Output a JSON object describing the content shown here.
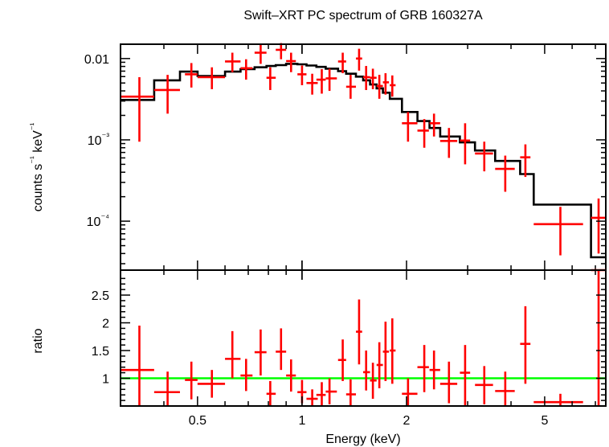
{
  "title": "Swift–XRT PC spectrum of GRB 160327A",
  "colors": {
    "data": "#ff0000",
    "model": "#000000",
    "unity": "#00ff00",
    "frame": "#000000"
  },
  "chart_data": [
    {
      "type": "scatter",
      "panel": "spectrum",
      "ylabel": "counts s⁻¹ keV⁻¹",
      "xscale": "log",
      "yscale": "log",
      "xlim": [
        0.3,
        7.5
      ],
      "ylim": [
        2.5e-05,
        0.015
      ],
      "yticks": [
        {
          "value": 0.01,
          "label": "0.01"
        },
        {
          "value": 0.001,
          "label": "10⁻³"
        },
        {
          "value": 0.0001,
          "label": "10⁻⁴"
        }
      ],
      "data_points": [
        {
          "x": 0.34,
          "x_lo": 0.3,
          "x_hi": 0.375,
          "y": 0.0034,
          "y_lo": 0.00095,
          "y_hi": 0.0059
        },
        {
          "x": 0.41,
          "x_lo": 0.375,
          "x_hi": 0.445,
          "y": 0.0041,
          "y_lo": 0.0021,
          "y_hi": 0.0063
        },
        {
          "x": 0.48,
          "x_lo": 0.46,
          "x_hi": 0.5,
          "y": 0.0064,
          "y_lo": 0.0044,
          "y_hi": 0.0088
        },
        {
          "x": 0.55,
          "x_lo": 0.5,
          "x_hi": 0.6,
          "y": 0.0059,
          "y_lo": 0.0042,
          "y_hi": 0.0078
        },
        {
          "x": 0.63,
          "x_lo": 0.6,
          "x_hi": 0.665,
          "y": 0.0092,
          "y_lo": 0.0068,
          "y_hi": 0.0118
        },
        {
          "x": 0.69,
          "x_lo": 0.665,
          "x_hi": 0.72,
          "y": 0.0076,
          "y_lo": 0.0055,
          "y_hi": 0.0098
        },
        {
          "x": 0.76,
          "x_lo": 0.73,
          "x_hi": 0.79,
          "y": 0.0118,
          "y_lo": 0.0086,
          "y_hi": 0.0148
        },
        {
          "x": 0.81,
          "x_lo": 0.79,
          "x_hi": 0.84,
          "y": 0.0058,
          "y_lo": 0.0041,
          "y_hi": 0.0078
        },
        {
          "x": 0.87,
          "x_lo": 0.84,
          "x_hi": 0.9,
          "y": 0.0128,
          "y_lo": 0.0098,
          "y_hi": 0.0155
        },
        {
          "x": 0.93,
          "x_lo": 0.9,
          "x_hi": 0.96,
          "y": 0.0093,
          "y_lo": 0.0068,
          "y_hi": 0.0118
        },
        {
          "x": 1.0,
          "x_lo": 0.97,
          "x_hi": 1.03,
          "y": 0.0064,
          "y_lo": 0.0047,
          "y_hi": 0.0082
        },
        {
          "x": 1.07,
          "x_lo": 1.03,
          "x_hi": 1.11,
          "y": 0.005,
          "y_lo": 0.0036,
          "y_hi": 0.0065
        },
        {
          "x": 1.14,
          "x_lo": 1.1,
          "x_hi": 1.17,
          "y": 0.0055,
          "y_lo": 0.0037,
          "y_hi": 0.0074
        },
        {
          "x": 1.2,
          "x_lo": 1.17,
          "x_hi": 1.26,
          "y": 0.0057,
          "y_lo": 0.004,
          "y_hi": 0.0075
        },
        {
          "x": 1.31,
          "x_lo": 1.27,
          "x_hi": 1.34,
          "y": 0.0092,
          "y_lo": 0.0066,
          "y_hi": 0.0118
        },
        {
          "x": 1.38,
          "x_lo": 1.34,
          "x_hi": 1.43,
          "y": 0.0045,
          "y_lo": 0.0032,
          "y_hi": 0.0063
        },
        {
          "x": 1.46,
          "x_lo": 1.43,
          "x_hi": 1.49,
          "y": 0.01,
          "y_lo": 0.0071,
          "y_hi": 0.0132
        },
        {
          "x": 1.53,
          "x_lo": 1.5,
          "x_hi": 1.57,
          "y": 0.0059,
          "y_lo": 0.0041,
          "y_hi": 0.0081
        },
        {
          "x": 1.6,
          "x_lo": 1.57,
          "x_hi": 1.64,
          "y": 0.0058,
          "y_lo": 0.0042,
          "y_hi": 0.0075
        },
        {
          "x": 1.67,
          "x_lo": 1.64,
          "x_hi": 1.71,
          "y": 0.0046,
          "y_lo": 0.0032,
          "y_hi": 0.0063
        },
        {
          "x": 1.74,
          "x_lo": 1.71,
          "x_hi": 1.78,
          "y": 0.0051,
          "y_lo": 0.0036,
          "y_hi": 0.0066
        },
        {
          "x": 1.82,
          "x_lo": 1.79,
          "x_hi": 1.86,
          "y": 0.0047,
          "y_lo": 0.0034,
          "y_hi": 0.0062
        },
        {
          "x": 2.02,
          "x_lo": 1.94,
          "x_hi": 2.15,
          "y": 0.0016,
          "y_lo": 0.00095,
          "y_hi": 0.0022
        },
        {
          "x": 2.25,
          "x_lo": 2.15,
          "x_hi": 2.32,
          "y": 0.0013,
          "y_lo": 0.0008,
          "y_hi": 0.0018
        },
        {
          "x": 2.4,
          "x_lo": 2.33,
          "x_hi": 2.5,
          "y": 0.0016,
          "y_lo": 0.0011,
          "y_hi": 0.0021
        },
        {
          "x": 2.65,
          "x_lo": 2.5,
          "x_hi": 2.8,
          "y": 0.00097,
          "y_lo": 0.0006,
          "y_hi": 0.0014
        },
        {
          "x": 2.95,
          "x_lo": 2.85,
          "x_hi": 3.05,
          "y": 0.00098,
          "y_lo": 0.0005,
          "y_hi": 0.0016
        },
        {
          "x": 3.35,
          "x_lo": 3.15,
          "x_hi": 3.55,
          "y": 0.00068,
          "y_lo": 0.00041,
          "y_hi": 0.00095
        },
        {
          "x": 3.85,
          "x_lo": 3.6,
          "x_hi": 4.1,
          "y": 0.00044,
          "y_lo": 0.00023,
          "y_hi": 0.00064
        },
        {
          "x": 4.4,
          "x_lo": 4.25,
          "x_hi": 4.55,
          "y": 0.00061,
          "y_lo": 0.00035,
          "y_hi": 0.00088
        },
        {
          "x": 5.55,
          "x_lo": 4.65,
          "x_hi": 6.45,
          "y": 9.2e-05,
          "y_lo": 3.8e-05,
          "y_hi": 0.00015
        },
        {
          "x": 7.15,
          "x_lo": 6.8,
          "x_hi": 7.5,
          "y": 0.00011,
          "y_lo": 4e-05,
          "y_hi": 0.00019
        }
      ],
      "model_steps": [
        {
          "x0": 0.3,
          "x1": 0.375,
          "y": 0.0031
        },
        {
          "x0": 0.375,
          "x1": 0.445,
          "y": 0.0054
        },
        {
          "x0": 0.445,
          "x1": 0.5,
          "y": 0.0069
        },
        {
          "x0": 0.5,
          "x1": 0.6,
          "y": 0.0061
        },
        {
          "x0": 0.6,
          "x1": 0.665,
          "y": 0.0069
        },
        {
          "x0": 0.665,
          "x1": 0.73,
          "y": 0.0074
        },
        {
          "x0": 0.73,
          "x1": 0.79,
          "y": 0.0078
        },
        {
          "x0": 0.79,
          "x1": 0.84,
          "y": 0.0081
        },
        {
          "x0": 0.84,
          "x1": 0.9,
          "y": 0.0083
        },
        {
          "x0": 0.9,
          "x1": 0.97,
          "y": 0.0086
        },
        {
          "x0": 0.97,
          "x1": 1.03,
          "y": 0.0085
        },
        {
          "x0": 1.03,
          "x1": 1.1,
          "y": 0.0082
        },
        {
          "x0": 1.1,
          "x1": 1.17,
          "y": 0.0079
        },
        {
          "x0": 1.17,
          "x1": 1.27,
          "y": 0.0075
        },
        {
          "x0": 1.27,
          "x1": 1.34,
          "y": 0.007
        },
        {
          "x0": 1.34,
          "x1": 1.43,
          "y": 0.0065
        },
        {
          "x0": 1.43,
          "x1": 1.5,
          "y": 0.006
        },
        {
          "x0": 1.5,
          "x1": 1.57,
          "y": 0.0054
        },
        {
          "x0": 1.57,
          "x1": 1.64,
          "y": 0.0048
        },
        {
          "x0": 1.64,
          "x1": 1.71,
          "y": 0.0043
        },
        {
          "x0": 1.71,
          "x1": 1.79,
          "y": 0.0038
        },
        {
          "x0": 1.79,
          "x1": 1.94,
          "y": 0.0032
        },
        {
          "x0": 1.94,
          "x1": 2.15,
          "y": 0.0022
        },
        {
          "x0": 2.15,
          "x1": 2.33,
          "y": 0.0017
        },
        {
          "x0": 2.33,
          "x1": 2.5,
          "y": 0.0014
        },
        {
          "x0": 2.5,
          "x1": 2.85,
          "y": 0.0011
        },
        {
          "x0": 2.85,
          "x1": 3.15,
          "y": 0.00093
        },
        {
          "x0": 3.15,
          "x1": 3.6,
          "y": 0.00074
        },
        {
          "x0": 3.6,
          "x1": 4.25,
          "y": 0.00055
        },
        {
          "x0": 4.25,
          "x1": 4.65,
          "y": 0.00038
        },
        {
          "x0": 4.65,
          "x1": 6.8,
          "y": 0.00016
        },
        {
          "x0": 6.8,
          "x1": 7.5,
          "y": 3.6e-05
        }
      ]
    },
    {
      "type": "scatter",
      "panel": "ratio",
      "xlabel": "Energy (keV)",
      "ylabel": "ratio",
      "xscale": "log",
      "xlim": [
        0.3,
        7.5
      ],
      "ylim": [
        0.5,
        2.95
      ],
      "xticks": [
        {
          "value": 0.5,
          "label": "0.5"
        },
        {
          "value": 1,
          "label": "1"
        },
        {
          "value": 2,
          "label": "2"
        },
        {
          "value": 5,
          "label": "5"
        }
      ],
      "yticks": [
        {
          "value": 1,
          "label": "1"
        },
        {
          "value": 1.5,
          "label": "1.5"
        },
        {
          "value": 2,
          "label": "2"
        },
        {
          "value": 2.5,
          "label": "2.5"
        }
      ],
      "reference_line": 1,
      "data_points": [
        {
          "x": 0.34,
          "x_lo": 0.3,
          "x_hi": 0.375,
          "y": 1.15,
          "y_lo": 0.38,
          "y_hi": 1.95
        },
        {
          "x": 0.41,
          "x_lo": 0.375,
          "x_hi": 0.445,
          "y": 0.75,
          "y_lo": 0.38,
          "y_hi": 1.12
        },
        {
          "x": 0.48,
          "x_lo": 0.46,
          "x_hi": 0.5,
          "y": 0.97,
          "y_lo": 0.62,
          "y_hi": 1.3
        },
        {
          "x": 0.55,
          "x_lo": 0.5,
          "x_hi": 0.6,
          "y": 0.9,
          "y_lo": 0.65,
          "y_hi": 1.15
        },
        {
          "x": 0.63,
          "x_lo": 0.6,
          "x_hi": 0.665,
          "y": 1.35,
          "y_lo": 1.0,
          "y_hi": 1.85
        },
        {
          "x": 0.69,
          "x_lo": 0.665,
          "x_hi": 0.72,
          "y": 1.05,
          "y_lo": 0.77,
          "y_hi": 1.35
        },
        {
          "x": 0.76,
          "x_lo": 0.73,
          "x_hi": 0.79,
          "y": 1.47,
          "y_lo": 1.05,
          "y_hi": 1.88
        },
        {
          "x": 0.81,
          "x_lo": 0.79,
          "x_hi": 0.84,
          "y": 0.72,
          "y_lo": 0.5,
          "y_hi": 0.95
        },
        {
          "x": 0.87,
          "x_lo": 0.84,
          "x_hi": 0.9,
          "y": 1.48,
          "y_lo": 1.15,
          "y_hi": 1.9
        },
        {
          "x": 0.93,
          "x_lo": 0.9,
          "x_hi": 0.96,
          "y": 1.05,
          "y_lo": 0.76,
          "y_hi": 1.34
        },
        {
          "x": 1.0,
          "x_lo": 0.97,
          "x_hi": 1.03,
          "y": 0.75,
          "y_lo": 0.55,
          "y_hi": 0.97
        },
        {
          "x": 1.07,
          "x_lo": 1.03,
          "x_hi": 1.11,
          "y": 0.63,
          "y_lo": 0.45,
          "y_hi": 0.8
        },
        {
          "x": 1.14,
          "x_lo": 1.1,
          "x_hi": 1.17,
          "y": 0.7,
          "y_lo": 0.48,
          "y_hi": 0.93
        },
        {
          "x": 1.2,
          "x_lo": 1.17,
          "x_hi": 1.26,
          "y": 0.76,
          "y_lo": 0.53,
          "y_hi": 1.0
        },
        {
          "x": 1.31,
          "x_lo": 1.27,
          "x_hi": 1.34,
          "y": 1.33,
          "y_lo": 0.95,
          "y_hi": 1.7
        },
        {
          "x": 1.38,
          "x_lo": 1.34,
          "x_hi": 1.43,
          "y": 0.71,
          "y_lo": 0.5,
          "y_hi": 0.98
        },
        {
          "x": 1.46,
          "x_lo": 1.43,
          "x_hi": 1.49,
          "y": 1.84,
          "y_lo": 1.25,
          "y_hi": 2.42
        },
        {
          "x": 1.53,
          "x_lo": 1.5,
          "x_hi": 1.57,
          "y": 1.11,
          "y_lo": 0.78,
          "y_hi": 1.5
        },
        {
          "x": 1.6,
          "x_lo": 1.57,
          "x_hi": 1.64,
          "y": 0.96,
          "y_lo": 0.63,
          "y_hi": 1.28
        },
        {
          "x": 1.67,
          "x_lo": 1.64,
          "x_hi": 1.71,
          "y": 1.24,
          "y_lo": 0.82,
          "y_hi": 1.65
        },
        {
          "x": 1.74,
          "x_lo": 1.71,
          "x_hi": 1.78,
          "y": 1.48,
          "y_lo": 0.95,
          "y_hi": 2.02
        },
        {
          "x": 1.82,
          "x_lo": 1.79,
          "x_hi": 1.86,
          "y": 1.5,
          "y_lo": 0.9,
          "y_hi": 2.08
        },
        {
          "x": 2.02,
          "x_lo": 1.94,
          "x_hi": 2.15,
          "y": 0.72,
          "y_lo": 0.42,
          "y_hi": 1.0
        },
        {
          "x": 2.25,
          "x_lo": 2.15,
          "x_hi": 2.32,
          "y": 1.2,
          "y_lo": 0.75,
          "y_hi": 1.6
        },
        {
          "x": 2.4,
          "x_lo": 2.33,
          "x_hi": 2.5,
          "y": 1.15,
          "y_lo": 0.8,
          "y_hi": 1.5
        },
        {
          "x": 2.65,
          "x_lo": 2.5,
          "x_hi": 2.8,
          "y": 0.9,
          "y_lo": 0.55,
          "y_hi": 1.3
        },
        {
          "x": 2.95,
          "x_lo": 2.85,
          "x_hi": 3.05,
          "y": 1.1,
          "y_lo": 0.5,
          "y_hi": 1.6
        },
        {
          "x": 3.35,
          "x_lo": 3.15,
          "x_hi": 3.55,
          "y": 0.88,
          "y_lo": 0.53,
          "y_hi": 1.22
        },
        {
          "x": 3.85,
          "x_lo": 3.6,
          "x_hi": 4.1,
          "y": 0.77,
          "y_lo": 0.42,
          "y_hi": 1.12
        },
        {
          "x": 4.4,
          "x_lo": 4.25,
          "x_hi": 4.55,
          "y": 1.62,
          "y_lo": 0.9,
          "y_hi": 2.3
        },
        {
          "x": 5.55,
          "x_lo": 4.65,
          "x_hi": 6.45,
          "y": 0.57,
          "y_lo": 0.42,
          "y_hi": 0.72
        },
        {
          "x": 7.15,
          "x_lo": 6.8,
          "x_hi": 7.5,
          "y": 2.95,
          "y_lo": 0.5,
          "y_hi": 2.95
        }
      ]
    }
  ]
}
